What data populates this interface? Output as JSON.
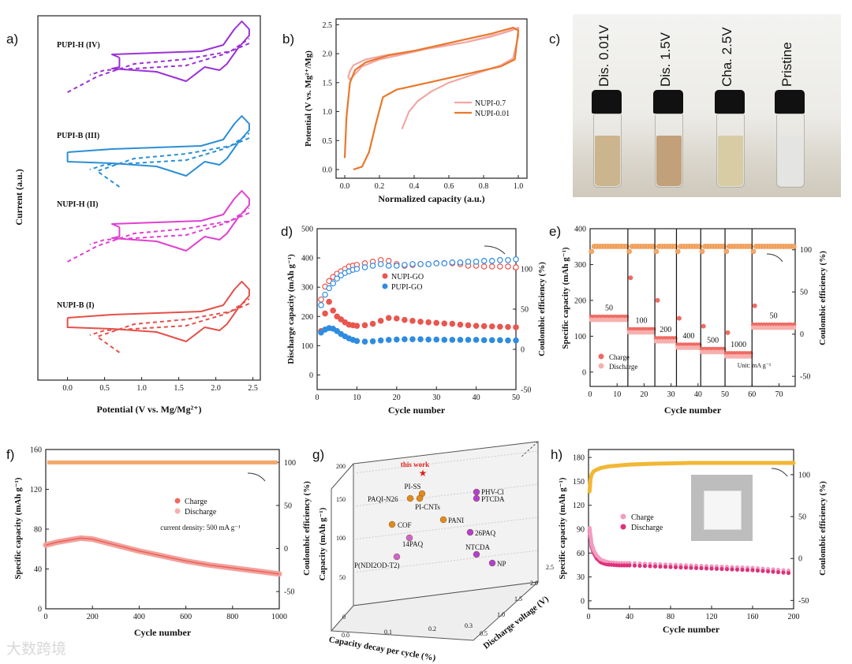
{
  "panel_labels": [
    "a)",
    "b)",
    "c)",
    "d)",
    "e)",
    "f)",
    "g)",
    "h)"
  ],
  "watermark": "大数跨境",
  "photo": {
    "vials": [
      {
        "label": "Dis. 0.01V",
        "liquid_color": "#cbb58e"
      },
      {
        "label": "Dis. 1.5V",
        "liquid_color": "#c2a07a"
      },
      {
        "label": "Cha. 2.5V",
        "liquid_color": "#d8cca5"
      },
      {
        "label": "Pristine",
        "liquid_color": "#e4e5e3"
      }
    ]
  },
  "chart_data": [
    {
      "panel": "a",
      "type": "line",
      "xlabel": "Potential (V vs. Mg/Mg²⁺)",
      "ylabel": "Current (a.u.)",
      "xlim": [
        -0.4,
        2.6
      ],
      "xticks": [
        "0.0",
        "0.5",
        "1.0",
        "1.5",
        "2.0",
        "2.5"
      ],
      "series": [
        {
          "name": "PUPI-H (IV)",
          "color": "#9b32d6"
        },
        {
          "name": "PUPI-B (III)",
          "color": "#2b8fd6"
        },
        {
          "name": "NUPI-H (II)",
          "color": "#e040d0"
        },
        {
          "name": "NUPI-B (I)",
          "color": "#e5504a"
        }
      ]
    },
    {
      "panel": "b",
      "type": "line",
      "xlabel": "Normalized capacity (a.u.)",
      "ylabel": "Potential (V vs. Mg²⁺/Mg)",
      "xlim": [
        -0.05,
        1.05
      ],
      "ylim": [
        -0.15,
        2.6
      ],
      "xticks": [
        "0.0",
        "0.2",
        "0.4",
        "0.6",
        "0.8",
        "1.0"
      ],
      "yticks": [
        "0.0",
        "0.5",
        "1.0",
        "1.5",
        "2.0",
        "2.5"
      ],
      "series": [
        {
          "name": "NUPI-0.7",
          "color": "#f2a7a3",
          "x": [
            0.33,
            0.37,
            0.42,
            0.5,
            0.6,
            0.7,
            0.8,
            0.9,
            0.97,
            1.0,
            1.0,
            0.96,
            0.85,
            0.7,
            0.55,
            0.4,
            0.25,
            0.12,
            0.05,
            0.03,
            0.02,
            0.03,
            0.06,
            0.1,
            0.2,
            0.35,
            0.5,
            0.7,
            0.9,
            1.0
          ],
          "y": [
            0.7,
            1.0,
            1.18,
            1.35,
            1.5,
            1.6,
            1.7,
            1.8,
            1.92,
            2.3,
            2.45,
            2.4,
            2.3,
            2.2,
            2.12,
            2.05,
            1.98,
            1.9,
            1.8,
            1.7,
            1.6,
            1.55,
            1.65,
            1.78,
            1.9,
            2.0,
            2.1,
            2.2,
            2.35,
            2.45
          ]
        },
        {
          "name": "NUPI-0.01",
          "color": "#e9772a",
          "x": [
            0.05,
            0.1,
            0.14,
            0.18,
            0.22,
            0.3,
            0.45,
            0.6,
            0.75,
            0.9,
            0.98,
            1.0,
            0.97,
            0.85,
            0.7,
            0.55,
            0.4,
            0.25,
            0.12,
            0.06,
            0.03,
            0.01,
            0.0
          ],
          "y": [
            0.0,
            0.05,
            0.3,
            0.8,
            1.25,
            1.38,
            1.48,
            1.58,
            1.68,
            1.78,
            1.9,
            2.4,
            2.45,
            2.35,
            2.25,
            2.15,
            2.05,
            1.97,
            1.85,
            1.72,
            1.5,
            0.9,
            0.2
          ]
        }
      ]
    },
    {
      "panel": "d",
      "type": "scatter",
      "xlabel": "Cycle number",
      "ylabel": "Discharge capacity (mAh g⁻¹)",
      "y2label": "Coulombic efficiency (%)",
      "xlim": [
        0,
        50
      ],
      "ylim": [
        -50,
        500
      ],
      "y2lim": [
        -50,
        150
      ],
      "xticks": [
        "0",
        "10",
        "20",
        "30",
        "40",
        "50"
      ],
      "yticks": [
        "0",
        "100",
        "200",
        "300",
        "400",
        "500"
      ],
      "y2ticks": [
        "-50",
        "0",
        "50",
        "100"
      ],
      "legend": [
        "NUPI-GO",
        "PUPI-GO"
      ],
      "series": [
        {
          "name": "NUPI-GO capacity",
          "color": "#e8574f",
          "axis": "left",
          "x": [
            1,
            2,
            3,
            4,
            5,
            6,
            7,
            8,
            9,
            10,
            12,
            14,
            16,
            18,
            20,
            22,
            24,
            26,
            28,
            30,
            32,
            34,
            36,
            38,
            40,
            42,
            44,
            46,
            48,
            50
          ],
          "y": [
            150,
            210,
            250,
            220,
            200,
            190,
            180,
            172,
            170,
            168,
            170,
            175,
            185,
            195,
            193,
            188,
            185,
            182,
            180,
            178,
            176,
            175,
            172,
            170,
            168,
            167,
            166,
            165,
            164,
            163
          ]
        },
        {
          "name": "PUPI-GO capacity",
          "color": "#2e8ce0",
          "axis": "left",
          "x": [
            1,
            2,
            3,
            4,
            5,
            6,
            7,
            8,
            9,
            10,
            12,
            14,
            16,
            18,
            20,
            22,
            24,
            26,
            28,
            30,
            32,
            34,
            36,
            38,
            40,
            42,
            44,
            46,
            48,
            50
          ],
          "y": [
            145,
            155,
            160,
            158,
            150,
            140,
            132,
            125,
            120,
            116,
            114,
            115,
            118,
            120,
            121,
            122,
            122,
            122,
            121,
            121,
            120,
            120,
            120,
            120,
            120,
            119,
            119,
            119,
            118,
            118
          ]
        },
        {
          "name": "NUPI-GO efficiency",
          "color": "#e8574f",
          "axis": "right",
          "hollow": true,
          "x": [
            1,
            2,
            3,
            4,
            5,
            6,
            7,
            8,
            9,
            10,
            12,
            14,
            16,
            18,
            20,
            22,
            24,
            26,
            28,
            30,
            32,
            34,
            36,
            38,
            40,
            42,
            44,
            46,
            48,
            50
          ],
          "y": [
            62,
            78,
            85,
            90,
            94,
            97,
            100,
            103,
            104,
            105,
            107,
            109,
            111,
            110,
            106,
            104,
            105,
            106,
            106,
            107,
            107,
            107,
            106,
            104,
            104,
            103,
            103,
            103,
            103,
            102
          ]
        },
        {
          "name": "PUPI-GO efficiency",
          "color": "#2e8ce0",
          "axis": "right",
          "hollow": true,
          "x": [
            1,
            2,
            3,
            4,
            5,
            6,
            7,
            8,
            9,
            10,
            12,
            14,
            16,
            18,
            20,
            22,
            24,
            26,
            28,
            30,
            32,
            34,
            36,
            38,
            40,
            42,
            44,
            46,
            48,
            50
          ],
          "y": [
            55,
            68,
            76,
            82,
            88,
            92,
            95,
            97,
            99,
            100,
            102,
            104,
            106,
            104,
            104,
            105,
            106,
            106,
            106,
            107,
            107,
            108,
            108,
            109,
            109,
            110,
            110,
            111,
            111,
            112
          ]
        }
      ]
    },
    {
      "panel": "e",
      "type": "scatter",
      "xlabel": "Cycle number",
      "ylabel": "Specific capacity (mAh g⁻¹)",
      "y2label": "Coulombic efficiency (%)",
      "xlim": [
        0,
        76
      ],
      "ylim": [
        -40,
        400
      ],
      "y2lim": [
        -62,
        125
      ],
      "xticks": [
        "0",
        "10",
        "20",
        "30",
        "40",
        "50",
        "60",
        "70"
      ],
      "yticks": [
        "0",
        "100",
        "200",
        "300",
        "400"
      ],
      "y2ticks": [
        "-50",
        "0",
        "50",
        "100"
      ],
      "legend": [
        "Charge",
        "Discharge"
      ],
      "unit_note": "Unit: mA g⁻¹",
      "rates": [
        {
          "label": "50",
          "x0": 0,
          "x1": 14,
          "cap": 150
        },
        {
          "label": "100",
          "x0": 14,
          "x1": 24,
          "cap": 115
        },
        {
          "label": "200",
          "x0": 24,
          "x1": 32,
          "cap": 90
        },
        {
          "label": "400",
          "x0": 32,
          "x1": 41,
          "cap": 72
        },
        {
          "label": "500",
          "x0": 41,
          "x1": 50,
          "cap": 60
        },
        {
          "label": "1000",
          "x0": 50,
          "x1": 60,
          "cap": 48
        },
        {
          "label": "50",
          "x0": 60,
          "x1": 76,
          "cap": 128
        }
      ],
      "spikes": [
        {
          "x": 15,
          "y": 263
        },
        {
          "x": 25,
          "y": 200
        },
        {
          "x": 33,
          "y": 150
        },
        {
          "x": 42,
          "y": 128
        },
        {
          "x": 51,
          "y": 110
        },
        {
          "x": 61,
          "y": 185
        }
      ],
      "efficiency": 104
    },
    {
      "panel": "f",
      "type": "scatter",
      "xlabel": "Cycle number",
      "ylabel": "Specific capacity (mAh g⁻¹)",
      "y2label": "Coulombic efficiency (%)",
      "xlim": [
        0,
        1000
      ],
      "ylim": [
        0,
        160
      ],
      "y2lim": [
        -70,
        115
      ],
      "xticks": [
        "0",
        "200",
        "400",
        "600",
        "800",
        "1000"
      ],
      "yticks": [
        "0",
        "40",
        "80",
        "120",
        "160"
      ],
      "y2ticks": [
        "-50",
        "0",
        "50",
        "100"
      ],
      "legend": [
        "Charge",
        "Discharge"
      ],
      "annotation": "current density: 500 mA g⁻¹",
      "capacity": {
        "x": [
          0,
          50,
          100,
          150,
          200,
          300,
          400,
          500,
          600,
          700,
          800,
          900,
          1000
        ],
        "y": [
          64,
          67,
          69,
          71,
          70,
          64,
          58,
          53,
          48,
          44,
          41,
          38,
          35
        ]
      },
      "efficiency": 100
    },
    {
      "panel": "g",
      "type": "scatter",
      "xlabel": "Capacity decay per cycle (%)",
      "ylabel": "Capacity (mAh g⁻¹)",
      "zlabel": "Discharge voltage (V)",
      "xticks": [
        "0.0",
        "0.1",
        "0.2",
        "0.3"
      ],
      "yticks": [
        "0",
        "50",
        "100",
        "150",
        "200"
      ],
      "zticks": [
        "0.5",
        "1.0",
        "1.5",
        "2.0",
        "2.5"
      ],
      "points": [
        {
          "label": "this work",
          "color": "#e0201a",
          "star": true
        },
        {
          "label": "PI-SS",
          "color": "#e08a20"
        },
        {
          "label": "PAQI-N26",
          "color": "#e08a20"
        },
        {
          "label": "PI-CNTs",
          "color": "#e08a20"
        },
        {
          "label": "COF",
          "color": "#e08a20"
        },
        {
          "label": "14PAQ",
          "color": "#cc66cc"
        },
        {
          "label": "P(NDI2OD-T2)",
          "color": "#cc66cc"
        },
        {
          "label": "PANI",
          "color": "#e08a20"
        },
        {
          "label": "PHV-Cl",
          "color": "#b040d0"
        },
        {
          "label": "PTCDA",
          "color": "#b040d0"
        },
        {
          "label": "26PAQ",
          "color": "#b040d0"
        },
        {
          "label": "NTCDA",
          "color": "#b040d0"
        },
        {
          "label": "NP",
          "color": "#b040d0"
        }
      ]
    },
    {
      "panel": "h",
      "type": "scatter",
      "xlabel": "Cycle number",
      "ylabel": "Specific capacity (mAh g⁻¹)",
      "y2label": "Coulombic efficiency (%)",
      "xlim": [
        0,
        200
      ],
      "ylim": [
        -10,
        190
      ],
      "y2lim": [
        -60,
        130
      ],
      "xticks": [
        "0",
        "40",
        "80",
        "120",
        "160",
        "200"
      ],
      "yticks": [
        "0",
        "30",
        "60",
        "90",
        "120",
        "150",
        "180"
      ],
      "y2ticks": [
        "-50",
        "0",
        "50",
        "100"
      ],
      "legend": [
        "Charge",
        "Discharge"
      ],
      "capacity": {
        "x": [
          1,
          2,
          3,
          5,
          8,
          12,
          16,
          20,
          30,
          40,
          60,
          80,
          100,
          120,
          140,
          160,
          180,
          200
        ],
        "y": [
          90,
          80,
          70,
          62,
          55,
          50,
          48,
          47,
          46,
          46,
          45,
          44,
          43,
          42,
          41,
          40,
          38,
          36
        ]
      },
      "efficiency": {
        "x": [
          1,
          2,
          3,
          5,
          8,
          12,
          20,
          40,
          60,
          100,
          150,
          200
        ],
        "y": [
          80,
          95,
          100,
          104,
          106,
          108,
          110,
          112,
          113,
          114,
          114,
          114
        ]
      }
    }
  ]
}
